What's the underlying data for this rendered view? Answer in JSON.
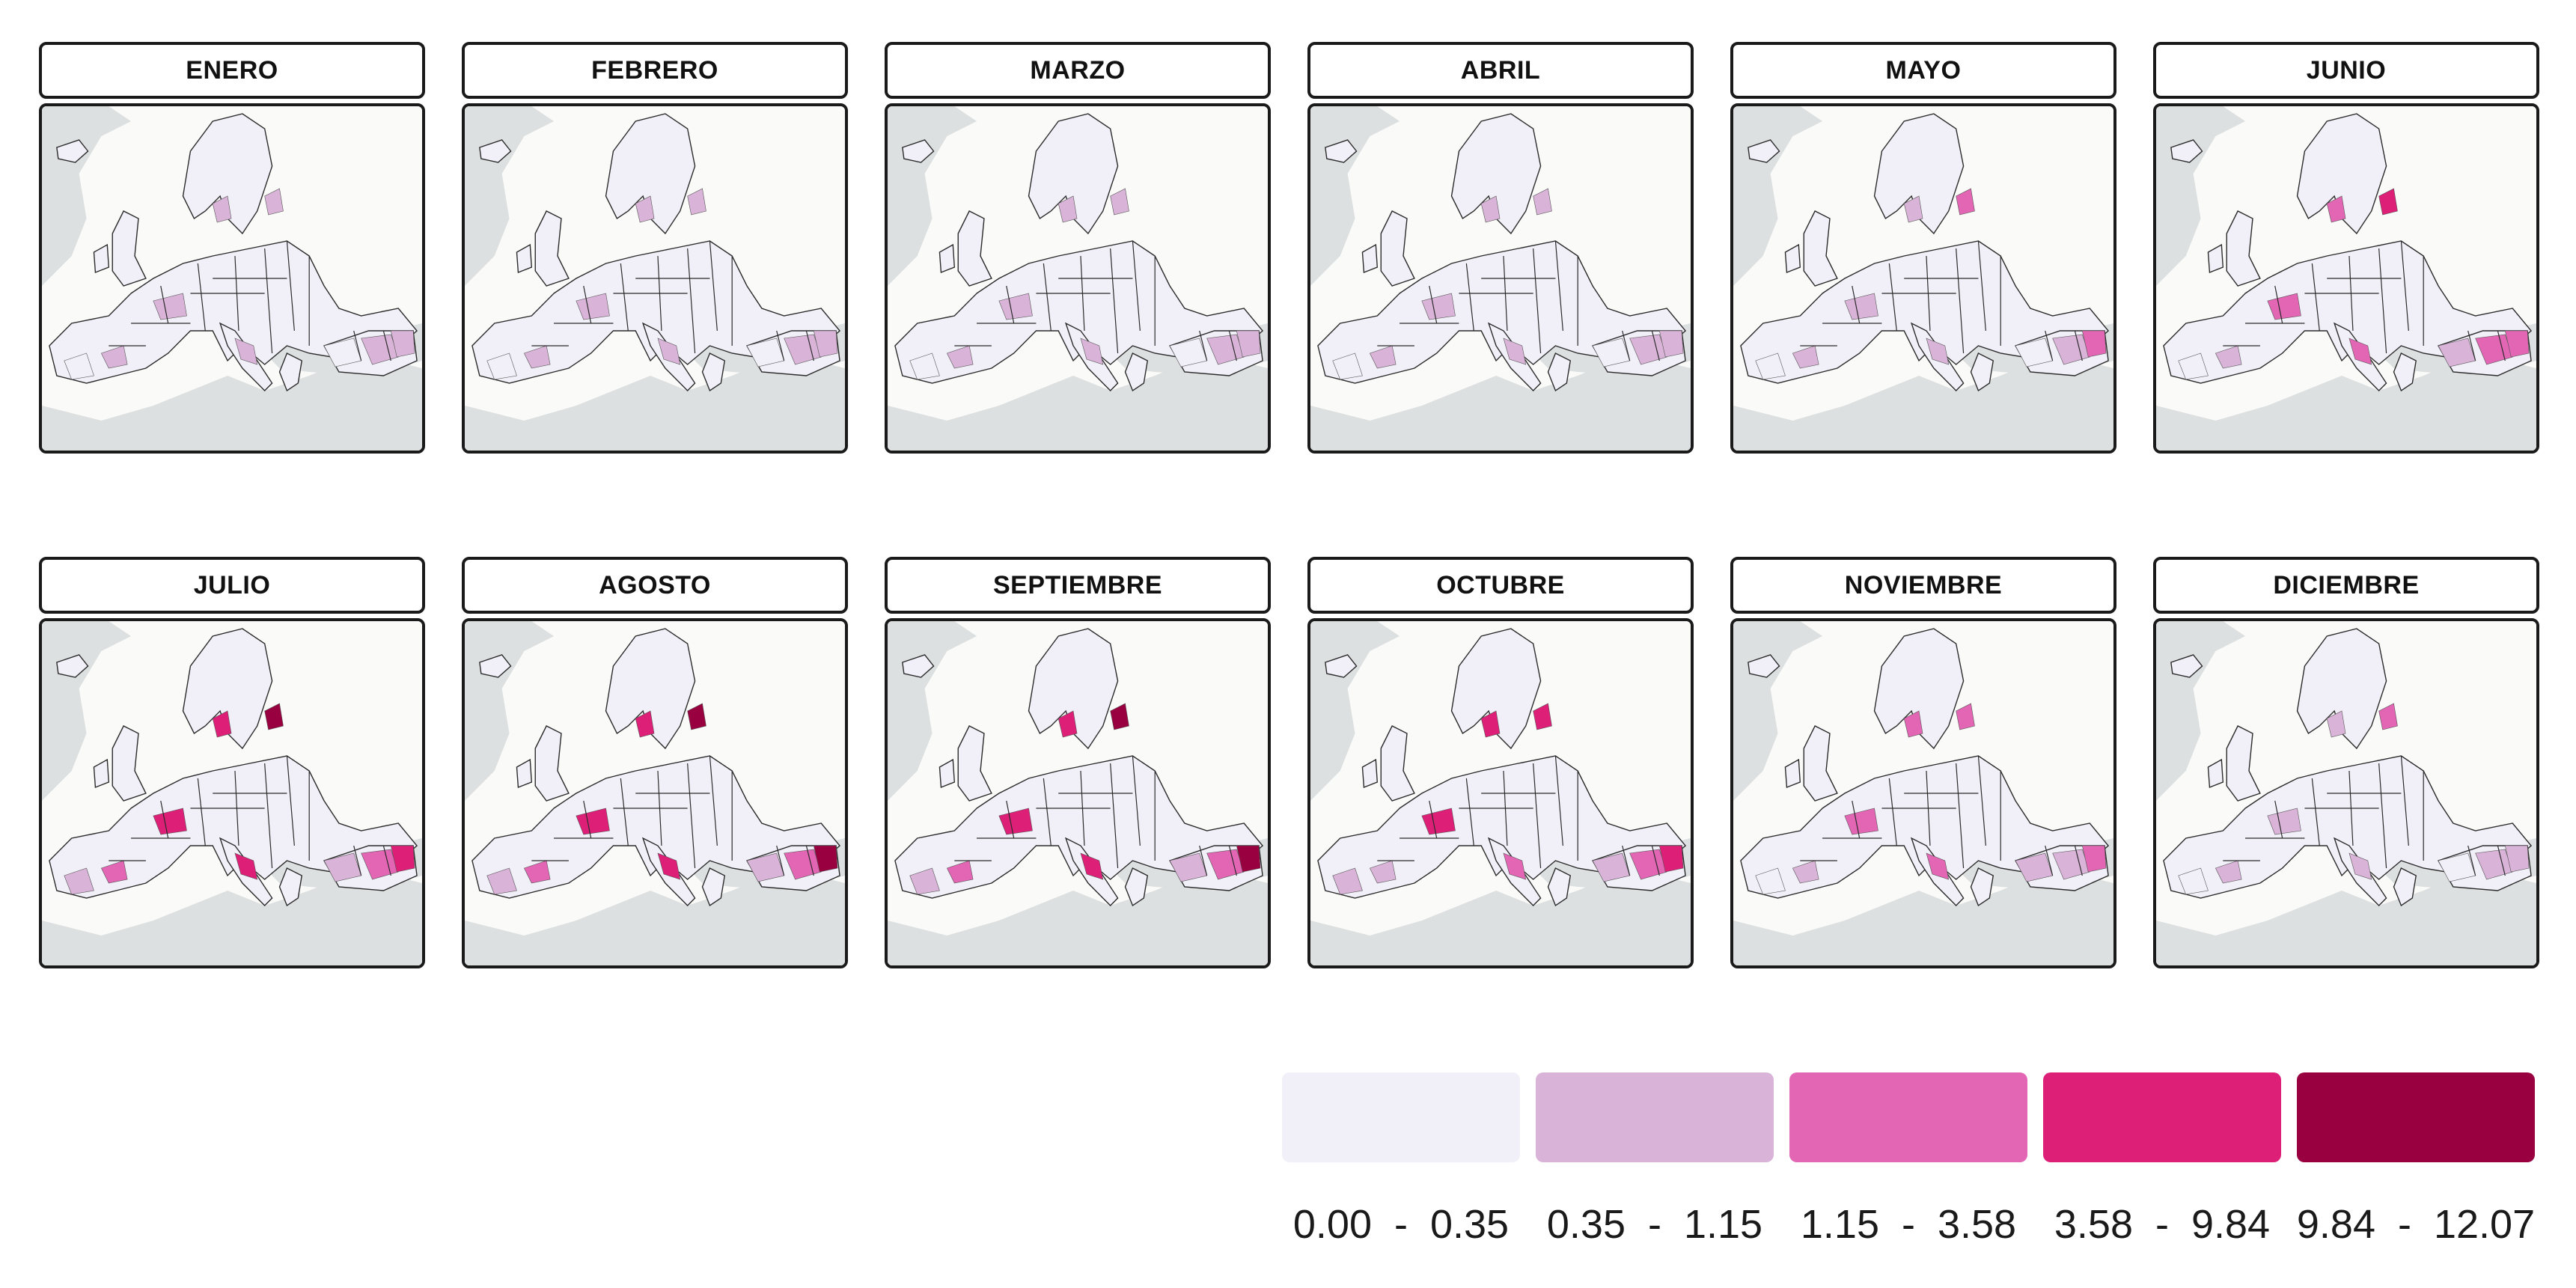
{
  "months": [
    {
      "label": "ENERO",
      "hot": 0.35
    },
    {
      "label": "FEBRERO",
      "hot": 0.35
    },
    {
      "label": "MARZO",
      "hot": 0.4
    },
    {
      "label": "ABRIL",
      "hot": 0.4
    },
    {
      "label": "MAYO",
      "hot": 0.5
    },
    {
      "label": "JUNIO",
      "hot": 0.7
    },
    {
      "label": "JULIO",
      "hot": 0.9
    },
    {
      "label": "AGOSTO",
      "hot": 1.0
    },
    {
      "label": "SEPTIEMBRE",
      "hot": 0.95
    },
    {
      "label": "OCTUBRE",
      "hot": 0.8
    },
    {
      "label": "NOVIEMBRE",
      "hot": 0.6
    },
    {
      "label": "DICIEMBRE",
      "hot": 0.45
    }
  ],
  "legend": [
    {
      "color": "#f1eff8",
      "label": "0.00  -  0.35"
    },
    {
      "color": "#d9b4d8",
      "label": "0.35  -  1.15"
    },
    {
      "color": "#e366b4",
      "label": "1.15  -  3.58"
    },
    {
      "color": "#de1f78",
      "label": "3.58  -  9.84"
    },
    {
      "color": "#990040",
      "label": "9.84  -  12.07"
    }
  ],
  "colors": {
    "land": "#f1eff8",
    "sea": "#dde0e0",
    "border": "#2a2a2a",
    "outside": "#fafaf8"
  }
}
